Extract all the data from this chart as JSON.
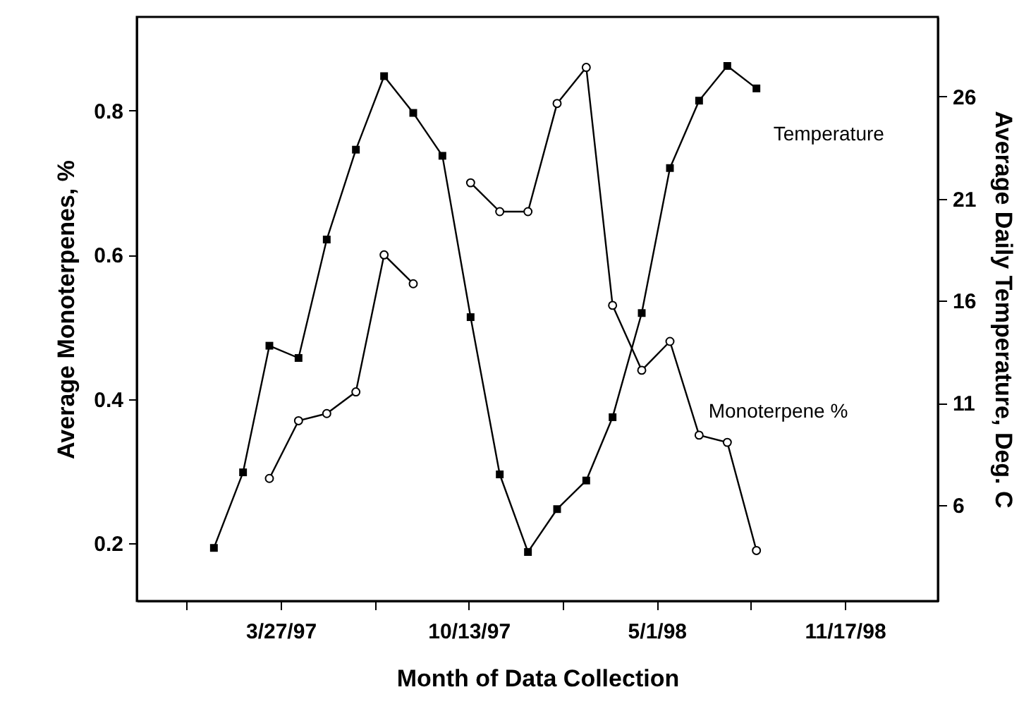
{
  "chart_data": {
    "type": "line",
    "xlabel": "Month of Data Collection",
    "ylabel": "Average Monoterpenes, %",
    "y2label": "Average Daily Temperature, Deg. C",
    "x": [
      "1997-01-15",
      "1997-02-15",
      "1997-03-15",
      "1997-04-15",
      "1997-05-15",
      "1997-06-15",
      "1997-07-15",
      "1997-08-15",
      "1997-09-15",
      "1997-10-15",
      "1997-11-15",
      "1997-12-15",
      "1998-01-15",
      "1998-02-15",
      "1998-03-15",
      "1998-04-15",
      "1998-05-15",
      "1998-06-15",
      "1998-07-15",
      "1998-08-15"
    ],
    "series": [
      {
        "name": "Temperature",
        "color": "#000000",
        "axis": "y2",
        "marker": "square",
        "values": [
          3.9,
          7.6,
          13.8,
          13.2,
          19.0,
          23.4,
          27.0,
          25.2,
          23.1,
          15.2,
          7.5,
          3.7,
          5.8,
          7.2,
          10.3,
          15.4,
          22.5,
          25.8,
          27.5,
          26.4
        ]
      },
      {
        "name": "Monoterpene %",
        "color": "#000000",
        "axis": "y",
        "marker": "circle",
        "values": [
          null,
          null,
          0.29,
          0.37,
          0.38,
          0.41,
          0.6,
          0.56,
          null,
          0.7,
          0.66,
          0.66,
          0.81,
          0.86,
          0.53,
          0.44,
          0.48,
          0.35,
          0.34,
          0.19
        ]
      }
    ],
    "xlim": [
      "1996-10-25",
      "1999-02-24"
    ],
    "xticks": [
      {
        "value": "1996-12-17",
        "label": null
      },
      {
        "value": "1997-03-27",
        "label": "3/27/97"
      },
      {
        "value": "1997-07-05",
        "label": null
      },
      {
        "value": "1997-10-13",
        "label": "10/13/97"
      },
      {
        "value": "1998-01-21",
        "label": null
      },
      {
        "value": "1998-05-01",
        "label": "5/1/98"
      },
      {
        "value": "1998-08-09",
        "label": null
      },
      {
        "value": "1998-11-17",
        "label": "11/17/98"
      }
    ],
    "ylim": [
      0.12,
      0.93
    ],
    "yticks": [
      0.2,
      0.4,
      0.6,
      0.8
    ],
    "y2lim": [
      1.3,
      29.9
    ],
    "y2ticks": [
      6,
      11,
      16,
      21,
      26
    ],
    "grid": false,
    "legend": false
  }
}
